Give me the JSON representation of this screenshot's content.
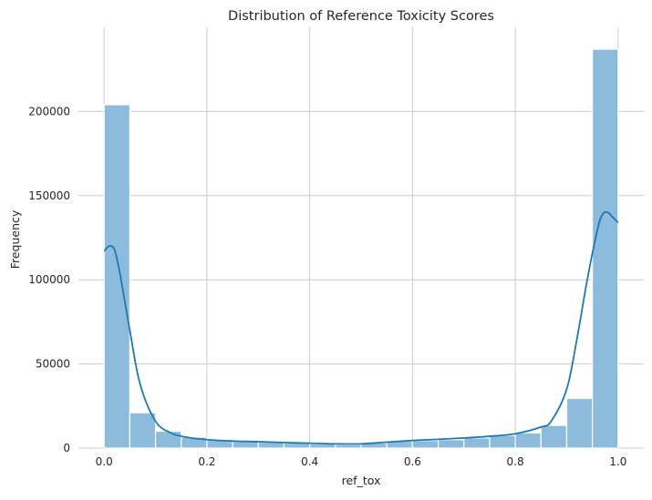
{
  "chart_data": {
    "type": "bar",
    "title": "Distribution of Reference Toxicity Scores",
    "xlabel": "ref_tox",
    "ylabel": "Frequency",
    "xlim": [
      -0.05,
      1.05
    ],
    "ylim": [
      0,
      250000
    ],
    "x_ticks": [
      0.0,
      0.2,
      0.4,
      0.6,
      0.8,
      1.0
    ],
    "x_tick_labels": [
      "0.0",
      "0.2",
      "0.4",
      "0.6",
      "0.8",
      "1.0"
    ],
    "y_ticks": [
      0,
      50000,
      100000,
      150000,
      200000
    ],
    "y_tick_labels": [
      "0",
      "50000",
      "100000",
      "150000",
      "200000"
    ],
    "grid": true,
    "bins": [
      {
        "start": 0.0,
        "end": 0.05,
        "count": 204000
      },
      {
        "start": 0.05,
        "end": 0.1,
        "count": 21000
      },
      {
        "start": 0.1,
        "end": 0.15,
        "count": 10000
      },
      {
        "start": 0.15,
        "end": 0.2,
        "count": 6500
      },
      {
        "start": 0.2,
        "end": 0.25,
        "count": 5000
      },
      {
        "start": 0.25,
        "end": 0.3,
        "count": 4000
      },
      {
        "start": 0.3,
        "end": 0.35,
        "count": 3500
      },
      {
        "start": 0.35,
        "end": 0.4,
        "count": 3000
      },
      {
        "start": 0.4,
        "end": 0.45,
        "count": 2500
      },
      {
        "start": 0.45,
        "end": 0.5,
        "count": 2000
      },
      {
        "start": 0.5,
        "end": 0.55,
        "count": 3000
      },
      {
        "start": 0.55,
        "end": 0.6,
        "count": 4000
      },
      {
        "start": 0.6,
        "end": 0.65,
        "count": 4500
      },
      {
        "start": 0.65,
        "end": 0.7,
        "count": 5000
      },
      {
        "start": 0.7,
        "end": 0.75,
        "count": 6000
      },
      {
        "start": 0.75,
        "end": 0.8,
        "count": 7500
      },
      {
        "start": 0.8,
        "end": 0.85,
        "count": 9000
      },
      {
        "start": 0.85,
        "end": 0.9,
        "count": 13500
      },
      {
        "start": 0.9,
        "end": 0.95,
        "count": 29500
      },
      {
        "start": 0.95,
        "end": 1.0,
        "count": 237000
      }
    ],
    "kde": {
      "x": [
        0.0,
        0.01,
        0.02,
        0.03,
        0.05,
        0.07,
        0.1,
        0.13,
        0.16,
        0.2,
        0.25,
        0.3,
        0.35,
        0.4,
        0.45,
        0.5,
        0.55,
        0.6,
        0.65,
        0.7,
        0.75,
        0.8,
        0.85,
        0.87,
        0.9,
        0.92,
        0.94,
        0.96,
        0.97,
        0.98,
        0.99,
        1.0
      ],
      "y": [
        117000,
        120000,
        118000,
        105000,
        70000,
        38000,
        16000,
        9000,
        6500,
        5000,
        4200,
        3800,
        3300,
        2900,
        2500,
        2500,
        3500,
        4500,
        5200,
        6000,
        7000,
        8500,
        12500,
        16000,
        35000,
        65000,
        100000,
        130000,
        139000,
        140000,
        137000,
        134000
      ]
    }
  }
}
